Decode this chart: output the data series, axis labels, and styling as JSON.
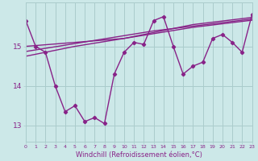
{
  "background_color": "#cce8e8",
  "grid_color": "#aacccc",
  "line_color": "#882288",
  "xlim": [
    0,
    23
  ],
  "ylim": [
    12.6,
    16.1
  ],
  "yticks": [
    13,
    14,
    15
  ],
  "ytick_labels": [
    "13",
    "14",
    "15"
  ],
  "xtick_labels": [
    "0",
    "1",
    "2",
    "3",
    "4",
    "5",
    "6",
    "7",
    "8",
    "9",
    "10",
    "11",
    "12",
    "13",
    "14",
    "15",
    "16",
    "17",
    "18",
    "19",
    "20",
    "21",
    "22",
    "23"
  ],
  "xlabel": "Windchill (Refroidissement éolien,°C)",
  "series_with_markers": [
    15.65,
    15.0,
    14.85,
    14.0,
    13.35,
    13.5,
    13.1,
    13.2,
    13.05,
    14.3,
    14.85,
    15.1,
    15.05,
    15.65,
    15.75,
    15.0,
    14.3,
    14.5,
    14.6,
    15.2,
    15.3,
    15.1,
    14.85,
    15.8
  ],
  "line1": [
    15.0,
    15.02,
    15.04,
    15.06,
    15.08,
    15.1,
    15.12,
    15.14,
    15.16,
    15.18,
    15.2,
    15.25,
    15.3,
    15.35,
    15.4,
    15.45,
    15.5,
    15.55,
    15.58,
    15.61,
    15.64,
    15.67,
    15.7,
    15.73
  ],
  "line2": [
    14.87,
    14.91,
    14.95,
    14.99,
    15.03,
    15.07,
    15.11,
    15.15,
    15.19,
    15.23,
    15.27,
    15.31,
    15.35,
    15.39,
    15.42,
    15.45,
    15.48,
    15.51,
    15.54,
    15.57,
    15.6,
    15.63,
    15.66,
    15.69
  ],
  "line3": [
    14.75,
    14.8,
    14.85,
    14.9,
    14.95,
    15.0,
    15.04,
    15.08,
    15.12,
    15.16,
    15.2,
    15.24,
    15.28,
    15.32,
    15.36,
    15.4,
    15.44,
    15.48,
    15.51,
    15.54,
    15.57,
    15.6,
    15.63,
    15.66
  ]
}
